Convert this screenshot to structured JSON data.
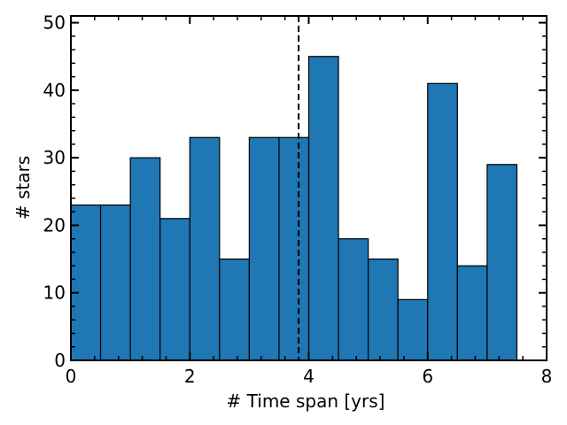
{
  "chart_data": {
    "type": "bar",
    "xlabel": "# Time span [yrs]",
    "ylabel": "# stars",
    "xlim": [
      0,
      8
    ],
    "ylim": [
      0,
      51
    ],
    "bin_width": 0.5,
    "bins": [
      {
        "x0": 0.0,
        "value": 23
      },
      {
        "x0": 0.5,
        "value": 23
      },
      {
        "x0": 1.0,
        "value": 30
      },
      {
        "x0": 1.5,
        "value": 21
      },
      {
        "x0": 2.0,
        "value": 33
      },
      {
        "x0": 2.5,
        "value": 15
      },
      {
        "x0": 3.0,
        "value": 33
      },
      {
        "x0": 3.5,
        "value": 33
      },
      {
        "x0": 4.0,
        "value": 45
      },
      {
        "x0": 4.5,
        "value": 18
      },
      {
        "x0": 5.0,
        "value": 15
      },
      {
        "x0": 5.5,
        "value": 9
      },
      {
        "x0": 6.0,
        "value": 41
      },
      {
        "x0": 6.5,
        "value": 14
      },
      {
        "x0": 7.0,
        "value": 29
      }
    ],
    "reference_line_x": 3.83,
    "xticks": [
      0,
      2,
      4,
      6,
      8
    ],
    "xtick_labels": [
      "0",
      "2",
      "4",
      "6",
      "8"
    ],
    "yticks": [
      0,
      10,
      20,
      30,
      40,
      50
    ],
    "ytick_labels": [
      "0",
      "10",
      "20",
      "30",
      "40",
      "50"
    ],
    "x_minor_step": 0.4,
    "y_minor_step": 2,
    "bar_color": "#1f77b4",
    "edge_color": "#000000",
    "grid": false,
    "legend": false
  }
}
